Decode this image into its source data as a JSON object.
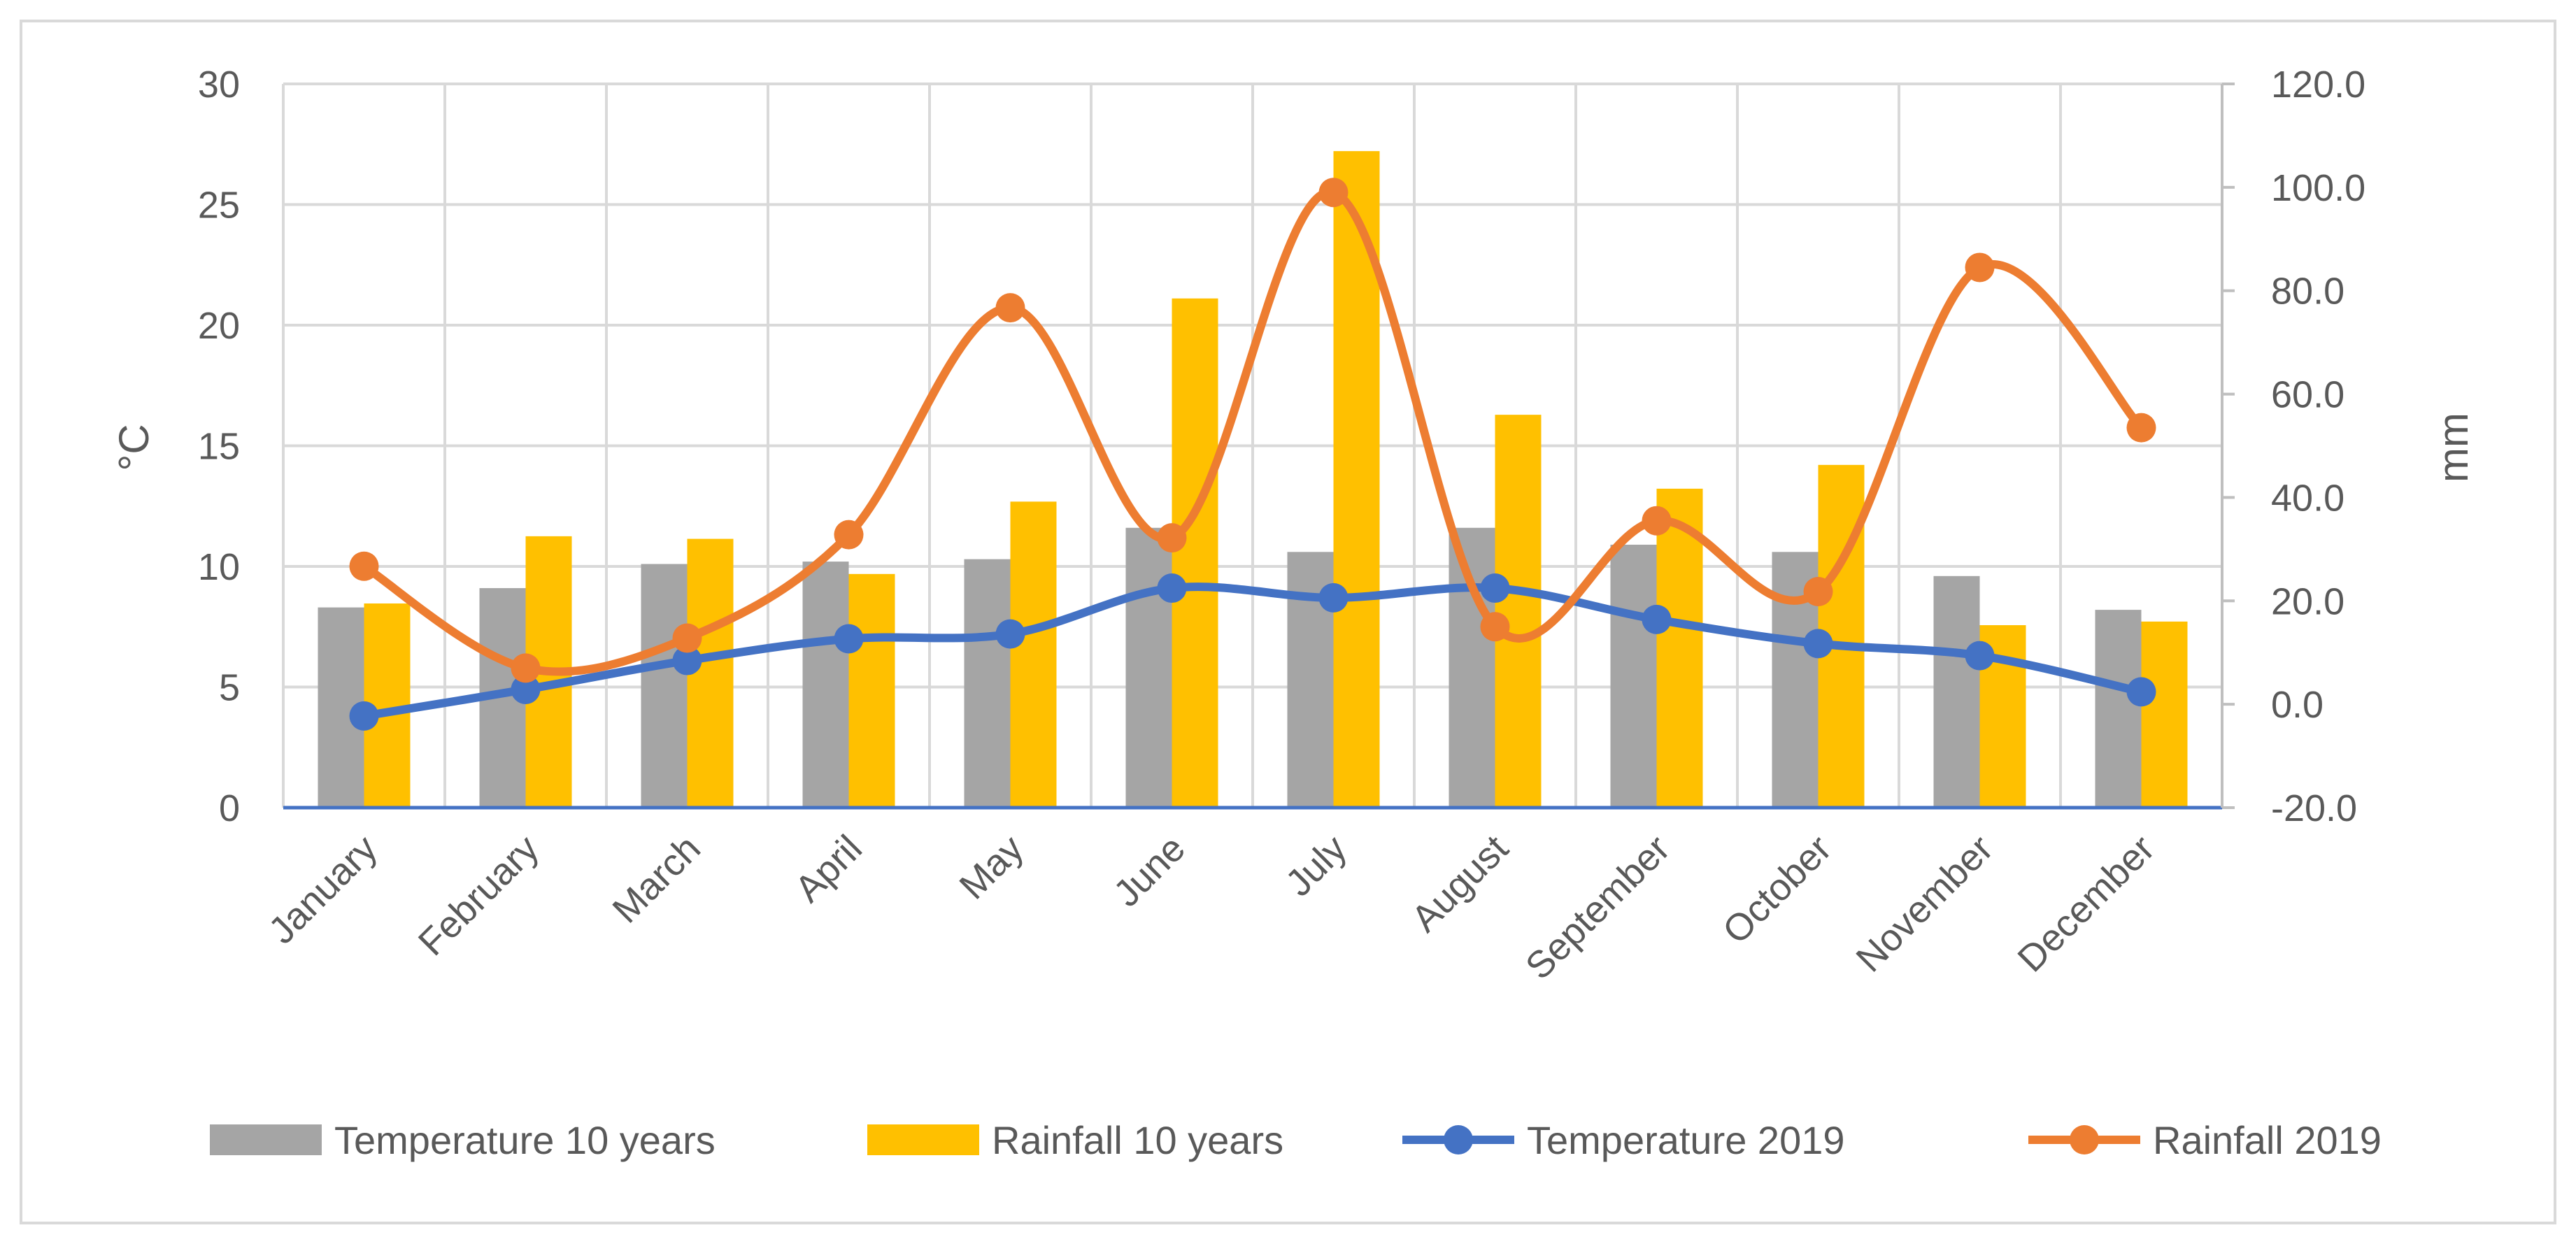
{
  "chart_data": {
    "type": "bar",
    "title": "",
    "categories": [
      "January",
      "February",
      "March",
      "April",
      "May",
      "June",
      "July",
      "August",
      "September",
      "October",
      "November",
      "December"
    ],
    "y_left": {
      "label": "°C",
      "lim": [
        0,
        30
      ],
      "ticks": [
        "0",
        "5",
        "10",
        "15",
        "20",
        "25",
        "30"
      ]
    },
    "y_right": {
      "label": "mm",
      "lim": [
        -20,
        120
      ],
      "ticks": [
        "-20.0",
        "0.0",
        "20.0",
        "40.0",
        "60.0",
        "80.0",
        "100.0",
        "120.0"
      ]
    },
    "gridlines": true,
    "legend_position": "bottom",
    "series": [
      {
        "name": "Temperature 10 years",
        "kind": "bar",
        "axis": "left",
        "color": "#a5a5a5",
        "values": [
          8.3,
          9.1,
          10.1,
          10.2,
          10.3,
          11.6,
          10.6,
          11.6,
          10.9,
          10.6,
          9.6,
          8.2
        ]
      },
      {
        "name": "Rainfall 10 years",
        "kind": "bar",
        "axis": "right",
        "color": "#ffc000",
        "values": [
          19.5,
          32.5,
          32.0,
          25.2,
          39.2,
          78.5,
          107.0,
          56.0,
          41.7,
          46.3,
          15.3,
          16.0
        ]
      },
      {
        "name": "Temperature 2019",
        "kind": "line",
        "axis": "left",
        "color": "#4472c4",
        "values": [
          3.8,
          4.9,
          6.1,
          7.0,
          7.2,
          9.1,
          8.7,
          9.1,
          7.8,
          6.8,
          6.3,
          4.8
        ]
      },
      {
        "name": "Rainfall 2019",
        "kind": "line",
        "axis": "right",
        "color": "#ed7d31",
        "values": [
          26.7,
          7.0,
          12.8,
          32.8,
          76.7,
          32.2,
          99.0,
          15.0,
          35.5,
          21.8,
          84.5,
          53.5
        ]
      }
    ]
  }
}
